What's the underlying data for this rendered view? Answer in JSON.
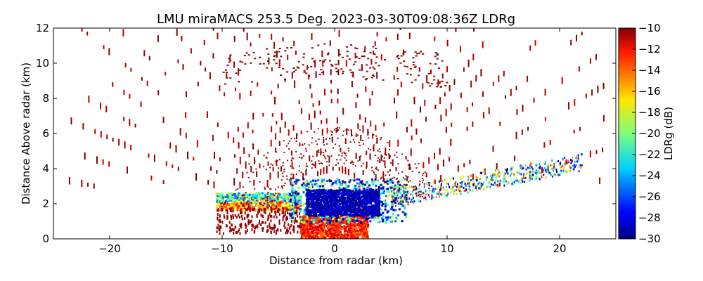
{
  "chart_data": {
    "type": "heatmap",
    "title": "LMU miraMACS 253.5 Deg. 2023-03-30T09:08:36Z  LDRg",
    "xlabel": "Distance from radar (km)",
    "ylabel": "Distance Above radar  (km)",
    "xlim": [
      -25,
      25
    ],
    "ylim": [
      0,
      12
    ],
    "xticks": [
      -20,
      -10,
      0,
      10,
      20
    ],
    "xtick_labels": [
      "−20",
      "−10",
      "0",
      "10",
      "20"
    ],
    "yticks": [
      0,
      2,
      4,
      6,
      8,
      10,
      12
    ],
    "ytick_labels": [
      "0",
      "2",
      "4",
      "6",
      "8",
      "10",
      "12"
    ],
    "colorbar": {
      "label": "LDRg (dB)",
      "range": [
        -30,
        -10
      ],
      "colormap": "jet",
      "ticks": [
        -30,
        -28,
        -26,
        -24,
        -22,
        -20,
        -18,
        -16,
        -14,
        -12,
        -10
      ],
      "tick_labels": [
        "−30",
        "−28",
        "−26",
        "−24",
        "−22",
        "−20",
        "−18",
        "−16",
        "−14",
        "−12",
        "−10"
      ]
    },
    "regions": [
      {
        "name": "low-ldr-core",
        "x_range": [
          -2.5,
          4
        ],
        "y_range": [
          1.3,
          2.8
        ],
        "ldr_db": -29
      },
      {
        "name": "near-surface-high-ldr",
        "x_range": [
          -3,
          3
        ],
        "y_range": [
          0,
          1.3
        ],
        "ldr_db": -11
      },
      {
        "name": "left-melting-layer-band",
        "x_range": [
          -10.5,
          -3
        ],
        "y_range": [
          1.6,
          2.6
        ],
        "ldr_db": -17
      },
      {
        "name": "right-sloping-band",
        "x_range": [
          5,
          22
        ],
        "y_range": [
          1.8,
          4.0
        ],
        "ldr_db": -22
      },
      {
        "name": "upper-ice-arcs",
        "x_range": [
          -24,
          24
        ],
        "y_range": [
          3,
          12
        ],
        "ldr_db": -10
      }
    ],
    "grid": false
  }
}
